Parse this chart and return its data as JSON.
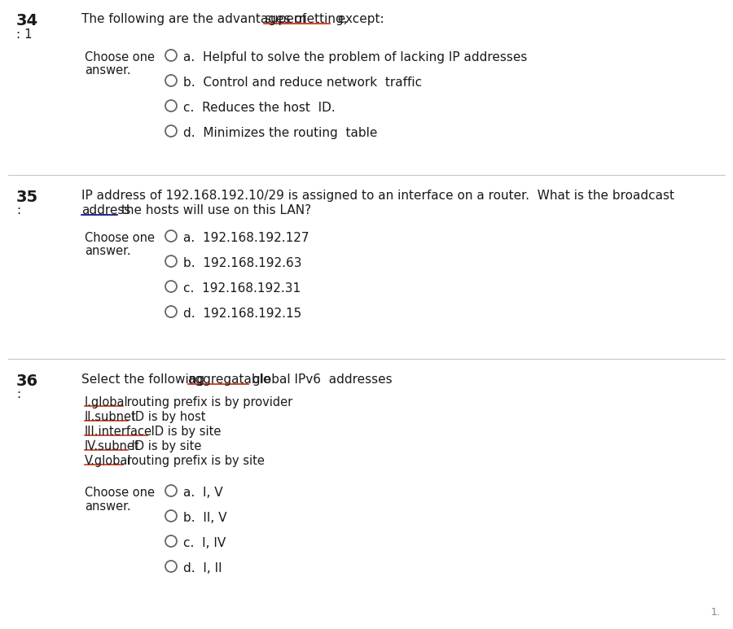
{
  "bg_color": "#ffffff",
  "divider_color": "#c8c8c8",
  "text_color": "#1a1a1a",
  "q34_num": "34",
  "q34_subnum": ": 1",
  "q34_question_pre": "The following are the advantages of ",
  "q34_question_ul": "supernetting,",
  "q34_question_post": "  except:",
  "q34_choose": "Choose one",
  "q34_answer": "answer.",
  "q34_options": [
    "a.  Helpful to solve the problem of lacking IP addresses",
    "b.  Control and reduce network  traffic",
    "c.  Reduces the host  ID.",
    "d.  Minimizes the routing  table"
  ],
  "q35_num": "35",
  "q35_subnum": ":",
  "q35_question1": "IP address of 192.168.192.10/29 is assigned to an interface on a router.  What is the broadcast",
  "q35_question2_pre": "",
  "q35_question2_ul": "address",
  "q35_question2_post": " the hosts will use on this LAN?",
  "q35_choose": "Choose one",
  "q35_answer": "answer.",
  "q35_options": [
    "a.  192.168.192.127",
    "b.  192.168.192.63",
    "c.  192.168.192.31",
    "d.  192.168.192.15"
  ],
  "q36_num": "36",
  "q36_subnum": ":",
  "q36_question_pre": "Select the following ",
  "q36_question_ul": "aggregatable",
  "q36_question_post": " global IPv6  addresses",
  "q36_items": [
    [
      "I.global",
      " routing prefix is by provider"
    ],
    [
      "II.subnet",
      " ID is by host"
    ],
    [
      "III.interface",
      " ID is by site"
    ],
    [
      "IV.subnet",
      " ID is by site"
    ],
    [
      "V.global",
      " routing prefix is by site"
    ]
  ],
  "q36_choose": "Choose one",
  "q36_answer": "answer.",
  "q36_options": [
    "a.  I, V",
    "b.  II, V",
    "c.  I, IV",
    "d.  I, II"
  ],
  "footer": "1."
}
